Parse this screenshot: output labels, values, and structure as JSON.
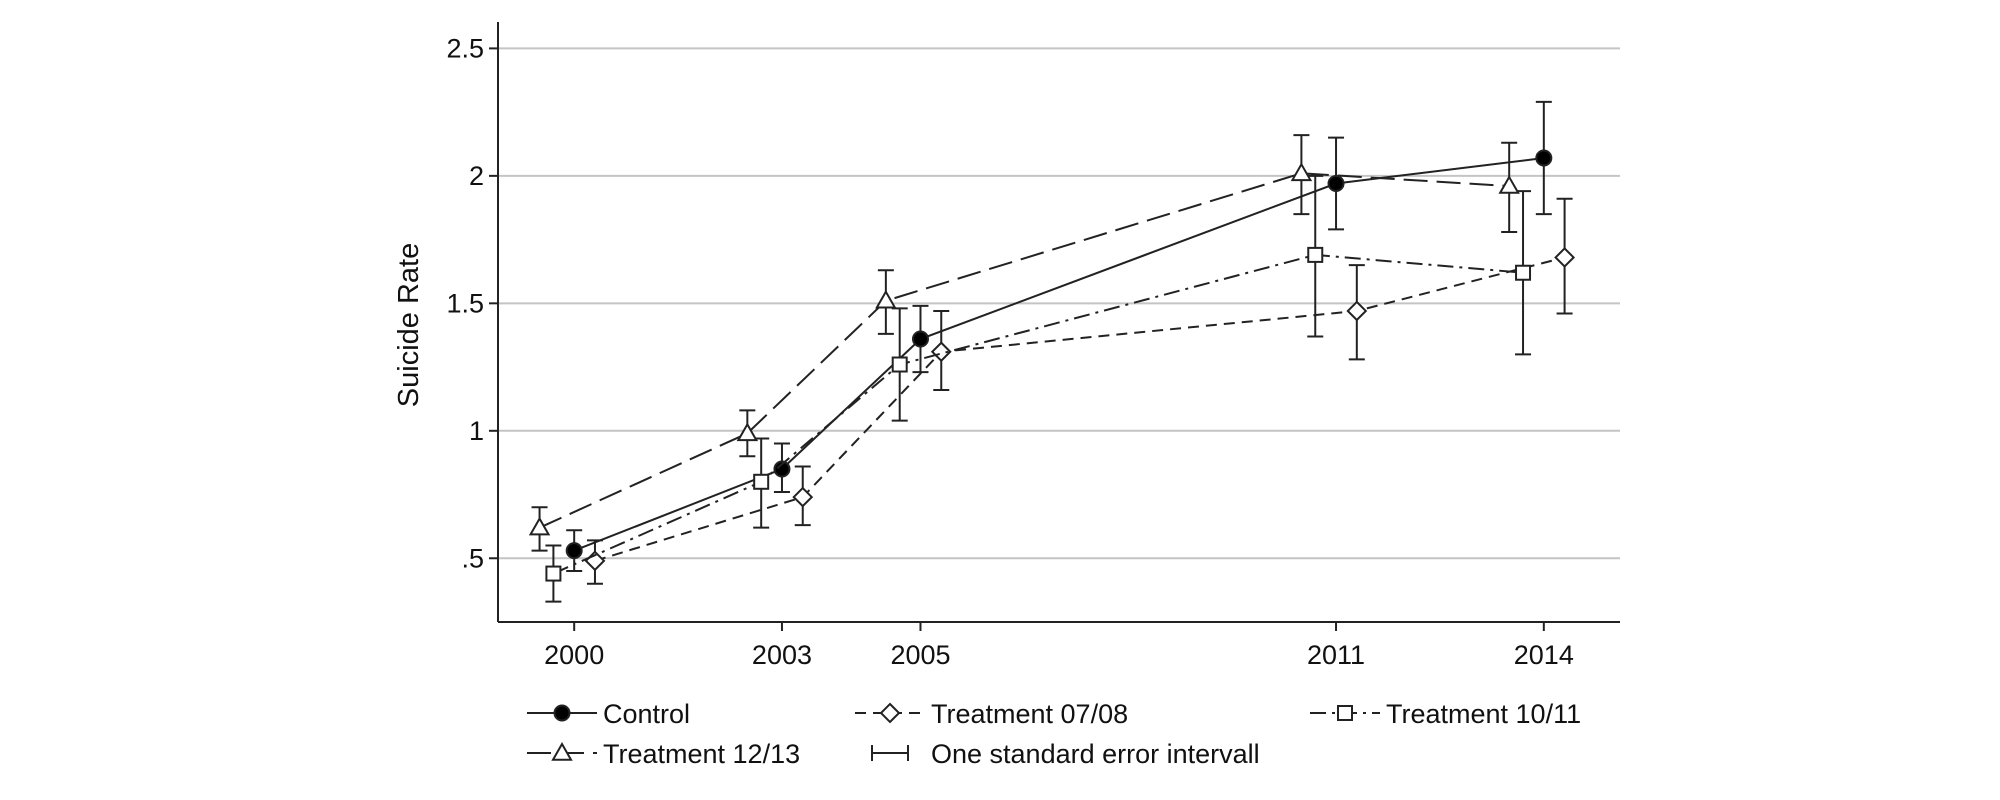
{
  "chart_data": {
    "type": "line",
    "title": "",
    "xlabel": "",
    "ylabel": "Suicide Rate",
    "x_ticks": [
      "2000",
      "2003",
      "2005",
      "2011",
      "2014"
    ],
    "y_ticks": [
      ".5",
      "1",
      "1.5",
      "2",
      "2.5"
    ],
    "xlim": [
      1998.9,
      2015.1
    ],
    "ylim": [
      0.25,
      2.58
    ],
    "grid": "horizontal",
    "legend_position": "bottom",
    "error_bars": "one standard error",
    "series": [
      {
        "name": "Control",
        "line_style": "solid",
        "marker": "filled-circle",
        "points": [
          {
            "x": 2000.0,
            "y": 0.53,
            "lo": 0.45,
            "hi": 0.61
          },
          {
            "x": 2003.0,
            "y": 0.85,
            "lo": 0.76,
            "hi": 0.95
          },
          {
            "x": 2005.0,
            "y": 1.36,
            "lo": 1.23,
            "hi": 1.49
          },
          {
            "x": 2011.0,
            "y": 1.97,
            "lo": 1.79,
            "hi": 2.15
          },
          {
            "x": 2014.0,
            "y": 2.07,
            "lo": 1.85,
            "hi": 2.29
          }
        ]
      },
      {
        "name": "Treatment 07/08",
        "line_style": "dashed",
        "marker": "hollow-diamond",
        "points": [
          {
            "x": 2000.3,
            "y": 0.49,
            "lo": 0.4,
            "hi": 0.57
          },
          {
            "x": 2003.3,
            "y": 0.74,
            "lo": 0.63,
            "hi": 0.86
          },
          {
            "x": 2005.3,
            "y": 1.31,
            "lo": 1.16,
            "hi": 1.47
          },
          {
            "x": 2011.3,
            "y": 1.47,
            "lo": 1.28,
            "hi": 1.65
          },
          {
            "x": 2014.3,
            "y": 1.68,
            "lo": 1.46,
            "hi": 1.91
          }
        ]
      },
      {
        "name": "Treatment 10/11",
        "line_style": "dash-dot",
        "marker": "hollow-square",
        "points": [
          {
            "x": 1999.7,
            "y": 0.44,
            "lo": 0.33,
            "hi": 0.55
          },
          {
            "x": 2002.7,
            "y": 0.8,
            "lo": 0.62,
            "hi": 0.97
          },
          {
            "x": 2004.7,
            "y": 1.26,
            "lo": 1.04,
            "hi": 1.48
          },
          {
            "x": 2010.7,
            "y": 1.69,
            "lo": 1.37,
            "hi": 2.0
          },
          {
            "x": 2013.7,
            "y": 1.62,
            "lo": 1.3,
            "hi": 1.94
          }
        ]
      },
      {
        "name": "Treatment 12/13",
        "line_style": "long-dash",
        "marker": "hollow-triangle",
        "points": [
          {
            "x": 1999.5,
            "y": 0.62,
            "lo": 0.53,
            "hi": 0.7
          },
          {
            "x": 2002.5,
            "y": 0.99,
            "lo": 0.9,
            "hi": 1.08
          },
          {
            "x": 2004.5,
            "y": 1.51,
            "lo": 1.38,
            "hi": 1.63
          },
          {
            "x": 2010.5,
            "y": 2.01,
            "lo": 1.85,
            "hi": 2.16
          },
          {
            "x": 2013.5,
            "y": 1.96,
            "lo": 1.78,
            "hi": 2.13
          }
        ]
      }
    ],
    "legend": [
      {
        "label": "Control",
        "marker": "filled-circle",
        "line_style": "solid"
      },
      {
        "label": "Treatment 07/08",
        "marker": "hollow-diamond",
        "line_style": "dashed"
      },
      {
        "label": "Treatment 10/11",
        "marker": "hollow-square",
        "line_style": "dash-dot"
      },
      {
        "label": "Treatment 12/13",
        "marker": "hollow-triangle",
        "line_style": "long-dash"
      },
      {
        "label": "One standard error intervall",
        "marker": "error-bar",
        "line_style": "solid"
      }
    ]
  }
}
